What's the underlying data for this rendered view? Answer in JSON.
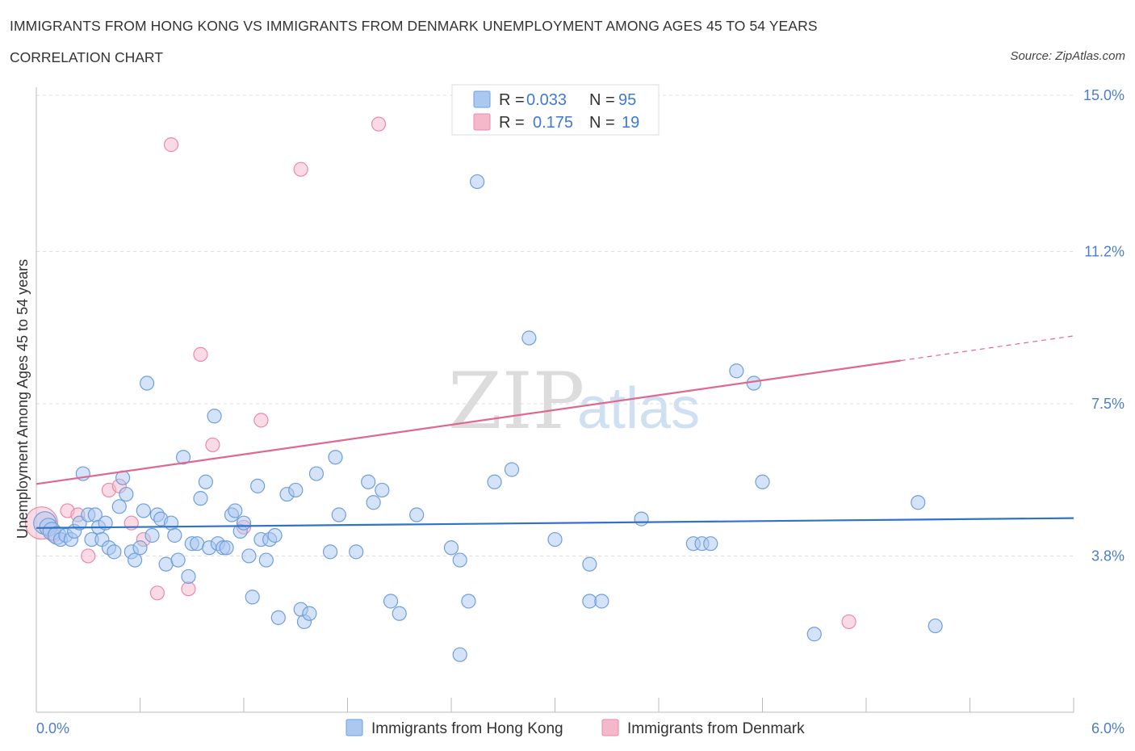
{
  "header": {
    "title": "IMMIGRANTS FROM HONG KONG VS IMMIGRANTS FROM DENMARK UNEMPLOYMENT AMONG AGES 45 TO 54 YEARS",
    "subtitle": "CORRELATION CHART",
    "source": "Source: ZipAtlas.com"
  },
  "watermark": {
    "zip": "ZIP",
    "atlas": "atlas"
  },
  "legend": {
    "hk": {
      "r_label": "R =",
      "r_value": "0.033",
      "n_label": "N =",
      "n_value": "95"
    },
    "dk": {
      "r_label": "R =",
      "r_value": "0.175",
      "n_label": "N =",
      "n_value": "19"
    }
  },
  "colors": {
    "hk_fill": "#aac8f0",
    "hk_stroke": "#6f9fdc",
    "hk_line": "#2f72c8",
    "dk_fill": "#f5b8cb",
    "dk_stroke": "#e88aa8",
    "dk_line": "#e06890",
    "grid": "#dddddd",
    "tick_text": "#4a7fc8"
  },
  "chart_data": {
    "type": "scatter",
    "title": "IMMIGRANTS FROM HONG KONG VS IMMIGRANTS FROM DENMARK UNEMPLOYMENT AMONG AGES 45 TO 54 YEARS",
    "xlabel": "",
    "ylabel": "Unemployment Among Ages 45 to 54 years",
    "xlim": [
      0.0,
      6.0
    ],
    "ylim": [
      0.0,
      15.0
    ],
    "x_tick_labels": [
      "0.0%",
      "6.0%"
    ],
    "y_ticks": [
      3.8,
      7.5,
      11.2,
      15.0
    ],
    "y_tick_labels": [
      "3.8%",
      "7.5%",
      "11.2%",
      "15.0%"
    ],
    "grid": true,
    "legend_position": "top-center",
    "series": [
      {
        "name": "Immigrants from Hong Kong",
        "R": 0.033,
        "N": 95,
        "trend": {
          "x": [
            0.0,
            6.0
          ],
          "y": [
            4.48,
            4.72
          ]
        },
        "points": [
          [
            0.05,
            4.6
          ],
          [
            0.07,
            4.5
          ],
          [
            0.09,
            4.4
          ],
          [
            0.12,
            4.3
          ],
          [
            0.14,
            4.2
          ],
          [
            0.17,
            4.3
          ],
          [
            0.2,
            4.2
          ],
          [
            0.22,
            4.4
          ],
          [
            0.25,
            4.6
          ],
          [
            0.27,
            5.8
          ],
          [
            0.3,
            4.8
          ],
          [
            0.32,
            4.2
          ],
          [
            0.34,
            4.8
          ],
          [
            0.36,
            4.5
          ],
          [
            0.38,
            4.2
          ],
          [
            0.4,
            4.6
          ],
          [
            0.42,
            4.0
          ],
          [
            0.45,
            3.9
          ],
          [
            0.48,
            5.0
          ],
          [
            0.5,
            5.7
          ],
          [
            0.52,
            5.3
          ],
          [
            0.55,
            3.9
          ],
          [
            0.57,
            3.7
          ],
          [
            0.6,
            4.0
          ],
          [
            0.62,
            4.9
          ],
          [
            0.64,
            8.0
          ],
          [
            0.67,
            4.3
          ],
          [
            0.7,
            4.8
          ],
          [
            0.72,
            4.7
          ],
          [
            0.75,
            3.6
          ],
          [
            0.78,
            4.6
          ],
          [
            0.8,
            4.3
          ],
          [
            0.82,
            3.7
          ],
          [
            0.85,
            6.2
          ],
          [
            0.88,
            3.3
          ],
          [
            0.9,
            4.1
          ],
          [
            0.93,
            4.1
          ],
          [
            0.95,
            5.2
          ],
          [
            0.98,
            5.6
          ],
          [
            1.0,
            4.0
          ],
          [
            1.03,
            7.2
          ],
          [
            1.05,
            4.1
          ],
          [
            1.08,
            4.0
          ],
          [
            1.1,
            4.0
          ],
          [
            1.13,
            4.8
          ],
          [
            1.15,
            4.9
          ],
          [
            1.18,
            4.4
          ],
          [
            1.2,
            4.6
          ],
          [
            1.23,
            3.8
          ],
          [
            1.25,
            2.8
          ],
          [
            1.28,
            5.5
          ],
          [
            1.3,
            4.2
          ],
          [
            1.33,
            3.7
          ],
          [
            1.35,
            4.2
          ],
          [
            1.38,
            4.3
          ],
          [
            1.4,
            2.3
          ],
          [
            1.45,
            5.3
          ],
          [
            1.5,
            5.4
          ],
          [
            1.53,
            2.5
          ],
          [
            1.55,
            2.2
          ],
          [
            1.58,
            2.4
          ],
          [
            1.62,
            5.8
          ],
          [
            1.7,
            3.9
          ],
          [
            1.73,
            6.2
          ],
          [
            1.75,
            4.8
          ],
          [
            1.85,
            3.9
          ],
          [
            1.92,
            5.6
          ],
          [
            1.95,
            5.1
          ],
          [
            2.0,
            5.4
          ],
          [
            2.05,
            2.7
          ],
          [
            2.1,
            2.4
          ],
          [
            2.2,
            4.8
          ],
          [
            2.4,
            4.0
          ],
          [
            2.45,
            1.4
          ],
          [
            2.5,
            2.7
          ],
          [
            2.45,
            3.7
          ],
          [
            2.55,
            12.9
          ],
          [
            2.65,
            5.6
          ],
          [
            2.75,
            5.9
          ],
          [
            2.85,
            9.1
          ],
          [
            3.0,
            4.2
          ],
          [
            3.2,
            2.7
          ],
          [
            3.2,
            3.6
          ],
          [
            3.27,
            2.7
          ],
          [
            3.5,
            4.7
          ],
          [
            3.8,
            4.1
          ],
          [
            3.85,
            4.1
          ],
          [
            3.9,
            4.1
          ],
          [
            4.05,
            8.3
          ],
          [
            4.15,
            8.0
          ],
          [
            4.2,
            5.6
          ],
          [
            4.5,
            1.9
          ],
          [
            5.1,
            5.1
          ],
          [
            5.2,
            2.1
          ]
        ]
      },
      {
        "name": "Immigrants from Denmark",
        "R": 0.175,
        "N": 19,
        "trend": {
          "x": [
            0.0,
            5.0
          ],
          "y": [
            5.55,
            8.55
          ]
        },
        "trend_dashed_to": {
          "x": 6.0,
          "y": 9.15
        },
        "points": [
          [
            0.03,
            4.6
          ],
          [
            0.1,
            4.3
          ],
          [
            0.18,
            4.9
          ],
          [
            0.24,
            4.8
          ],
          [
            0.3,
            3.8
          ],
          [
            0.42,
            5.4
          ],
          [
            0.48,
            5.5
          ],
          [
            0.55,
            4.6
          ],
          [
            0.62,
            4.2
          ],
          [
            0.7,
            2.9
          ],
          [
            0.78,
            13.8
          ],
          [
            0.88,
            3.0
          ],
          [
            0.95,
            8.7
          ],
          [
            1.02,
            6.5
          ],
          [
            1.2,
            4.5
          ],
          [
            1.3,
            7.1
          ],
          [
            1.53,
            13.2
          ],
          [
            1.98,
            14.3
          ],
          [
            4.7,
            2.2
          ]
        ]
      }
    ]
  },
  "bottom_legend": {
    "hk_label": "Immigrants from Hong Kong",
    "dk_label": "Immigrants from Denmark"
  }
}
